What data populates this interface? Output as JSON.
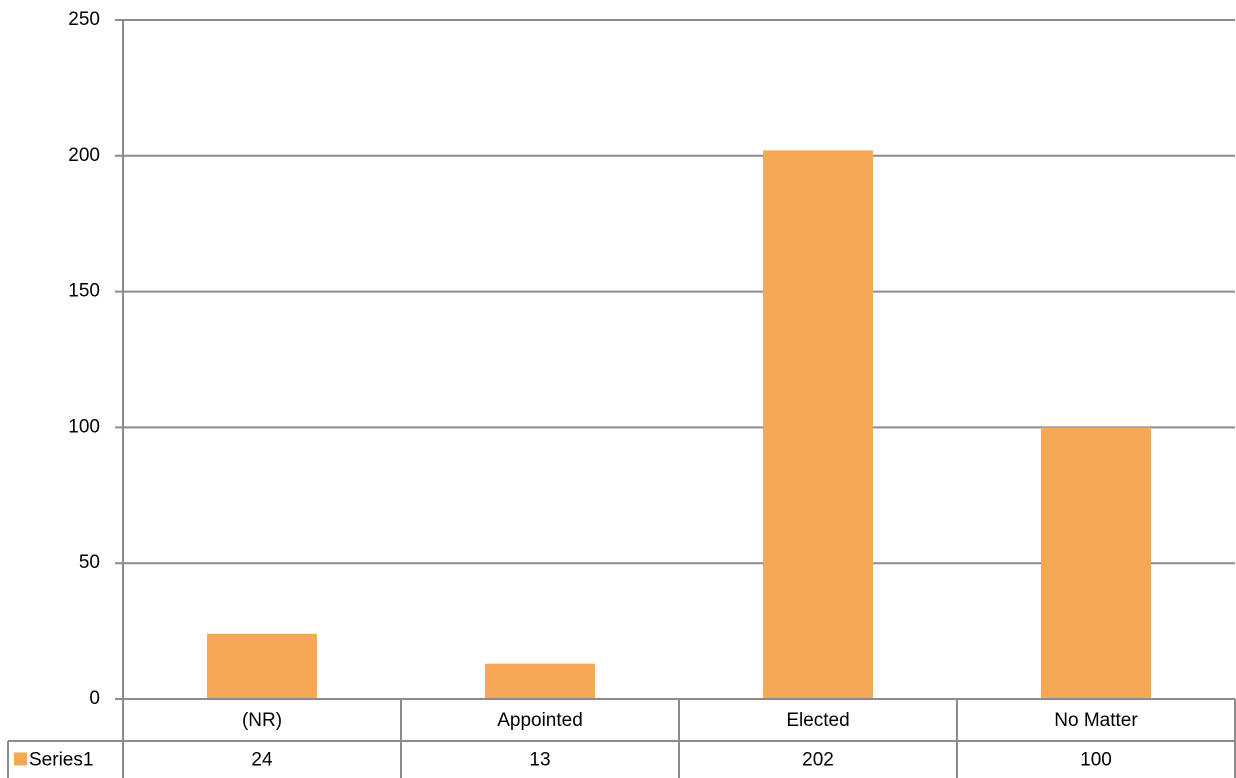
{
  "chart_data": {
    "type": "bar",
    "categories": [
      "(NR)",
      "Appointed",
      "Elected",
      "No Matter"
    ],
    "series": [
      {
        "name": "Series1",
        "color": "#f7a857",
        "values": [
          24,
          13,
          202,
          100
        ]
      }
    ],
    "ylim": [
      0,
      250
    ],
    "yticks": [
      0,
      50,
      100,
      150,
      200,
      250
    ],
    "grid": true,
    "data_table": true
  }
}
